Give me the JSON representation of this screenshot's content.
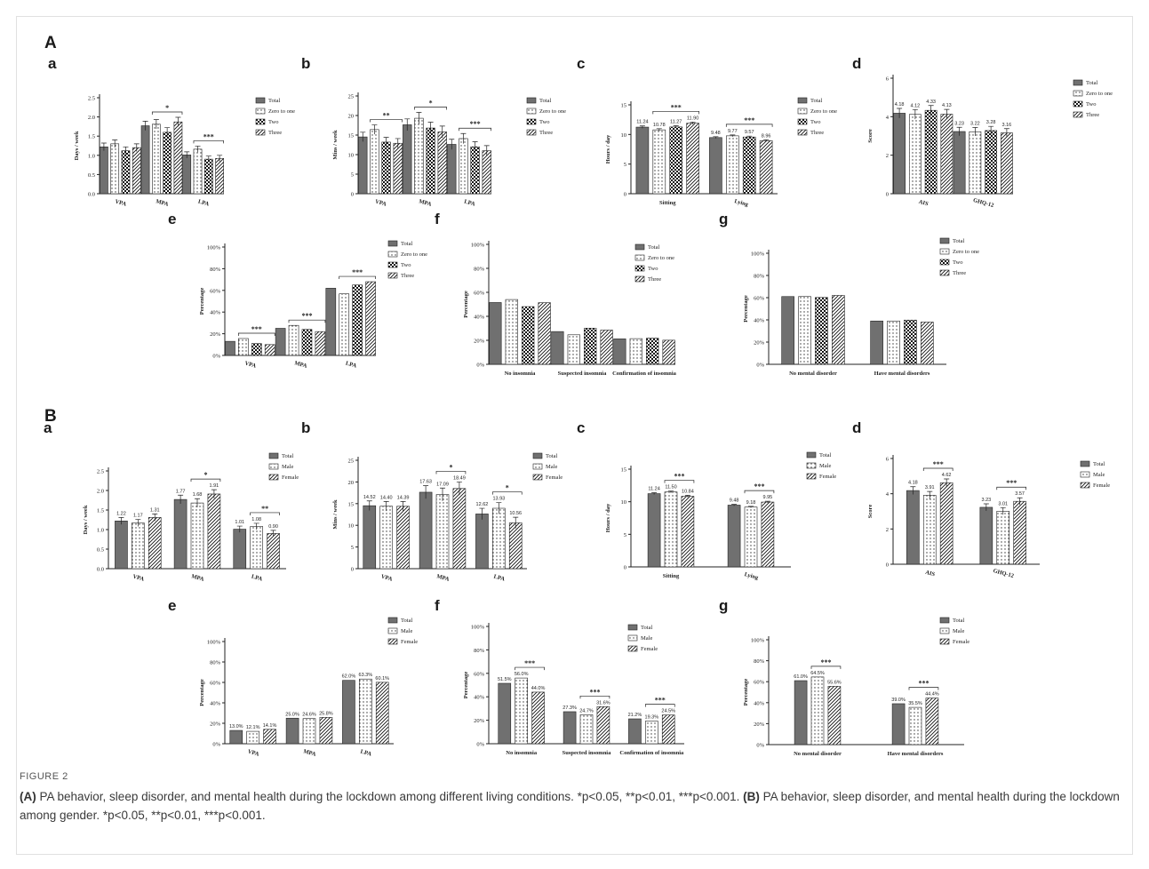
{
  "figure": {
    "label": "FIGURE 2",
    "section_a": "A",
    "section_b": "B",
    "caption_a_head": "(A)",
    "caption_a_text": " PA behavior, sleep disorder, and mental health during the lockdown among different living conditions. *p<0.05, **p<0.01, ***p<0.001. ",
    "caption_b_head": "(B)",
    "caption_b_text": " PA behavior, sleep disorder, and mental health during the lockdown among gender. *p<0.05, **p<0.01, ***p<0.001."
  },
  "colors": {
    "total": "#707070",
    "bar_edge": "#222222"
  },
  "chart_data": [
    {
      "id": "A-a",
      "letter": "a",
      "type": "bar",
      "ylabel": "Days / week",
      "ylim": [
        0,
        2.5
      ],
      "ticks": [
        0.0,
        0.5,
        1.0,
        1.5,
        2.0,
        2.5
      ],
      "tick_decimals": 1,
      "categories": [
        "VPA",
        "MPA",
        "LPA"
      ],
      "series": [
        {
          "name": "Total",
          "pattern": "solid",
          "values": [
            1.22,
            1.77,
            1.01
          ]
        },
        {
          "name": "Zero to one",
          "pattern": "dots",
          "values": [
            1.3,
            1.81,
            1.16
          ]
        },
        {
          "name": "Two",
          "pattern": "checker",
          "values": [
            1.12,
            1.6,
            0.9
          ]
        },
        {
          "name": "Three",
          "pattern": "stripes",
          "values": [
            1.2,
            1.87,
            0.92
          ]
        }
      ],
      "errors": [
        0.1,
        0.12,
        0.08
      ],
      "sig": [
        {
          "cat": 1,
          "text": "*"
        },
        {
          "cat": 2,
          "text": "***"
        }
      ],
      "value_labels": []
    },
    {
      "id": "A-b",
      "letter": "b",
      "type": "bar",
      "ylabel": "Mins / week",
      "ylim": [
        0,
        25
      ],
      "ticks": [
        0,
        5,
        10,
        15,
        20,
        25
      ],
      "tick_decimals": 0,
      "categories": [
        "VPA",
        "MPA",
        "LPA"
      ],
      "series": [
        {
          "name": "Total",
          "pattern": "solid",
          "values": [
            14.52,
            17.63,
            12.62
          ]
        },
        {
          "name": "Zero to one",
          "pattern": "dots",
          "values": [
            16.4,
            19.3,
            14.1
          ]
        },
        {
          "name": "Two",
          "pattern": "checker",
          "values": [
            13.2,
            16.8,
            12.0
          ]
        },
        {
          "name": "Three",
          "pattern": "stripes",
          "values": [
            12.9,
            15.8,
            11.0
          ]
        }
      ],
      "errors": [
        1.2,
        1.5,
        1.3
      ],
      "sig": [
        {
          "cat": 0,
          "text": "**"
        },
        {
          "cat": 1,
          "text": "*"
        },
        {
          "cat": 2,
          "text": "***"
        }
      ],
      "value_labels": []
    },
    {
      "id": "A-c",
      "letter": "c",
      "type": "bar",
      "ylabel": "Hours / day",
      "ylim": [
        0,
        15
      ],
      "ticks": [
        0,
        5,
        10,
        15
      ],
      "tick_decimals": 0,
      "categories": [
        "Sitting",
        "Lying"
      ],
      "series": [
        {
          "name": "Total",
          "pattern": "solid",
          "values": [
            11.24,
            9.48
          ]
        },
        {
          "name": "Zero to one",
          "pattern": "dots",
          "values": [
            10.78,
            9.77
          ]
        },
        {
          "name": "Two",
          "pattern": "checker",
          "values": [
            11.27,
            9.57
          ]
        },
        {
          "name": "Three",
          "pattern": "stripes",
          "values": [
            11.9,
            8.96
          ]
        }
      ],
      "errors": [
        0.2,
        0.15
      ],
      "sig": [
        {
          "cat": 0,
          "text": "***"
        },
        {
          "cat": 1,
          "text": "***"
        }
      ],
      "value_labels": [
        [
          "11.24",
          "10.78",
          "11.27",
          "11.90"
        ],
        [
          "9.48",
          "9.77",
          "9.57",
          "8.96"
        ]
      ]
    },
    {
      "id": "A-d",
      "letter": "d",
      "type": "bar",
      "ylabel": "Score",
      "ylim": [
        0,
        6
      ],
      "ticks": [
        0,
        2,
        4,
        6
      ],
      "tick_decimals": 0,
      "categories": [
        "AIS",
        "GHQ-12"
      ],
      "series": [
        {
          "name": "Total",
          "pattern": "solid",
          "values": [
            4.18,
            3.23
          ]
        },
        {
          "name": "Zero to one",
          "pattern": "dots",
          "values": [
            4.12,
            3.22
          ]
        },
        {
          "name": "Two",
          "pattern": "checker",
          "values": [
            4.33,
            3.28
          ]
        },
        {
          "name": "Three",
          "pattern": "stripes",
          "values": [
            4.13,
            3.16
          ]
        }
      ],
      "errors": [
        0.25,
        0.22
      ],
      "sig": [],
      "value_labels": [
        [
          "4.18",
          "4.12",
          "4.33",
          "4.13"
        ],
        [
          "3.23",
          "3.22",
          "3.28",
          "3.16"
        ]
      ]
    },
    {
      "id": "A-e",
      "letter": "e",
      "type": "bar",
      "ylabel": "Percentage",
      "ylim": [
        0,
        100
      ],
      "ticks": [
        0,
        20,
        40,
        60,
        80,
        100
      ],
      "tick_suffix": "%",
      "tick_decimals": 0,
      "categories": [
        "VPA",
        "MPA",
        "LPA"
      ],
      "series": [
        {
          "name": "Total",
          "pattern": "solid",
          "values": [
            13.0,
            25.0,
            62.0
          ]
        },
        {
          "name": "Zero to one",
          "pattern": "dots",
          "values": [
            15.6,
            27.7,
            56.8
          ]
        },
        {
          "name": "Two",
          "pattern": "checker",
          "values": [
            11.0,
            24.0,
            65.0
          ]
        },
        {
          "name": "Three",
          "pattern": "stripes",
          "values": [
            10.0,
            22.0,
            68.0
          ]
        }
      ],
      "errors": [],
      "sig": [
        {
          "cat": 0,
          "text": "***"
        },
        {
          "cat": 1,
          "text": "***"
        },
        {
          "cat": 2,
          "text": "***"
        }
      ],
      "value_labels": []
    },
    {
      "id": "A-f",
      "letter": "f",
      "type": "bar",
      "ylabel": "Percentage",
      "ylim": [
        0,
        100
      ],
      "ticks": [
        0,
        20,
        40,
        60,
        80,
        100
      ],
      "tick_suffix": "%",
      "tick_decimals": 0,
      "categories": [
        "No insomnia",
        "Suspected insomnia",
        "Confirmation of insomnia"
      ],
      "series": [
        {
          "name": "Total",
          "pattern": "solid",
          "values": [
            51.5,
            27.3,
            21.2
          ]
        },
        {
          "name": "Zero to one",
          "pattern": "dots",
          "values": [
            54.0,
            24.6,
            21.4
          ]
        },
        {
          "name": "Two",
          "pattern": "checker",
          "values": [
            48.1,
            30.1,
            21.8
          ]
        },
        {
          "name": "Three",
          "pattern": "stripes",
          "values": [
            51.4,
            28.5,
            20.1
          ]
        }
      ],
      "errors": [],
      "sig": [],
      "value_labels": []
    },
    {
      "id": "A-g",
      "letter": "g",
      "type": "bar",
      "ylabel": "Percentage",
      "ylim": [
        0,
        100
      ],
      "ticks": [
        0,
        20,
        40,
        60,
        80,
        100
      ],
      "tick_suffix": "%",
      "tick_decimals": 0,
      "categories": [
        "No mental disorder",
        "Have mental disorders"
      ],
      "series": [
        {
          "name": "Total",
          "pattern": "solid",
          "values": [
            61.0,
            39.0
          ]
        },
        {
          "name": "Zero to one",
          "pattern": "dots",
          "values": [
            61.0,
            39.0
          ]
        },
        {
          "name": "Two",
          "pattern": "checker",
          "values": [
            60.2,
            39.8
          ]
        },
        {
          "name": "Three",
          "pattern": "stripes",
          "values": [
            62.0,
            38.0
          ]
        }
      ],
      "errors": [],
      "sig": [],
      "value_labels": []
    },
    {
      "id": "B-a",
      "letter": "a",
      "type": "bar",
      "ylabel": "Days / week",
      "ylim": [
        0,
        2.5
      ],
      "ticks": [
        0.0,
        0.5,
        1.0,
        1.5,
        2.0,
        2.5
      ],
      "tick_decimals": 1,
      "categories": [
        "VPA",
        "MPA",
        "LPA"
      ],
      "series": [
        {
          "name": "Total",
          "pattern": "solid",
          "values": [
            1.22,
            1.77,
            1.01
          ]
        },
        {
          "name": "Male",
          "pattern": "dots",
          "values": [
            1.17,
            1.68,
            1.08
          ]
        },
        {
          "name": "Female",
          "pattern": "stripes",
          "values": [
            1.31,
            1.91,
            0.9
          ]
        }
      ],
      "errors": [
        0.09,
        0.11,
        0.08
      ],
      "sig": [
        {
          "cat": 1,
          "text": "*"
        },
        {
          "cat": 2,
          "text": "**"
        }
      ],
      "value_labels": [
        [
          "1.22",
          "1.17",
          "1.31"
        ],
        [
          "1.77",
          "1.68",
          "1.91"
        ],
        [
          "1.01",
          "1.08",
          "0.90"
        ]
      ]
    },
    {
      "id": "B-b",
      "letter": "b",
      "type": "bar",
      "ylabel": "Mins / week",
      "ylim": [
        0,
        25
      ],
      "ticks": [
        0,
        5,
        10,
        15,
        20,
        25
      ],
      "tick_decimals": 0,
      "categories": [
        "VPA",
        "MPA",
        "LPA"
      ],
      "series": [
        {
          "name": "Total",
          "pattern": "solid",
          "values": [
            14.52,
            17.63,
            12.62
          ]
        },
        {
          "name": "Male",
          "pattern": "dots",
          "values": [
            14.4,
            17.09,
            13.93
          ]
        },
        {
          "name": "Female",
          "pattern": "stripes",
          "values": [
            14.39,
            18.49,
            10.56
          ]
        }
      ],
      "errors": [
        1.1,
        1.5,
        1.3
      ],
      "sig": [
        {
          "cat": 1,
          "text": "*"
        },
        {
          "cat": 2,
          "text": "*"
        }
      ],
      "value_labels": [
        [
          "14.52",
          "14.40",
          "14.39"
        ],
        [
          "17.63",
          "17.09",
          "18.49"
        ],
        [
          "12.62",
          "13.93",
          "10.56"
        ]
      ]
    },
    {
      "id": "B-c",
      "letter": "c",
      "type": "bar",
      "ylabel": "Hours / day",
      "ylim": [
        0,
        15
      ],
      "ticks": [
        0,
        5,
        10,
        15
      ],
      "tick_decimals": 0,
      "categories": [
        "Sitting",
        "Lying"
      ],
      "series": [
        {
          "name": "Total",
          "pattern": "solid",
          "values": [
            11.24,
            9.48
          ]
        },
        {
          "name": "Male",
          "pattern": "dots",
          "values": [
            11.5,
            9.18
          ]
        },
        {
          "name": "Female",
          "pattern": "stripes",
          "values": [
            10.84,
            9.95
          ]
        }
      ],
      "errors": [
        0.15,
        0.12
      ],
      "sig": [
        {
          "cat": 0,
          "text": "***"
        },
        {
          "cat": 1,
          "text": "***"
        }
      ],
      "value_labels": [
        [
          "11.24",
          "11.50",
          "10.84"
        ],
        [
          "9.48",
          "9.18",
          "9.95"
        ]
      ]
    },
    {
      "id": "B-d",
      "letter": "d",
      "type": "bar",
      "ylabel": "Score",
      "ylim": [
        0,
        6
      ],
      "ticks": [
        0,
        2,
        4,
        6
      ],
      "tick_decimals": 0,
      "categories": [
        "AIS",
        "GHQ-12"
      ],
      "series": [
        {
          "name": "Total",
          "pattern": "solid",
          "values": [
            4.18,
            3.23
          ]
        },
        {
          "name": "Male",
          "pattern": "dots",
          "values": [
            3.91,
            3.01
          ]
        },
        {
          "name": "Female",
          "pattern": "stripes",
          "values": [
            4.62,
            3.57
          ]
        }
      ],
      "errors": [
        0.22,
        0.2
      ],
      "sig": [
        {
          "cat": 0,
          "text": "***"
        },
        {
          "cat": 1,
          "text": "***"
        }
      ],
      "value_labels": [
        [
          "4.18",
          "3.91",
          "4.62"
        ],
        [
          "3.23",
          "3.01",
          "3.57"
        ]
      ]
    },
    {
      "id": "B-e",
      "letter": "e",
      "type": "bar",
      "ylabel": "Percentage",
      "ylim": [
        0,
        100
      ],
      "ticks": [
        0,
        20,
        40,
        60,
        80,
        100
      ],
      "tick_suffix": "%",
      "tick_decimals": 0,
      "categories": [
        "VPA",
        "MPA",
        "LPA"
      ],
      "series": [
        {
          "name": "Total",
          "pattern": "solid",
          "values": [
            13.0,
            25.0,
            62.0
          ]
        },
        {
          "name": "Male",
          "pattern": "dots",
          "values": [
            12.1,
            24.6,
            63.3
          ]
        },
        {
          "name": "Female",
          "pattern": "stripes",
          "values": [
            14.1,
            25.8,
            60.1
          ]
        }
      ],
      "errors": [],
      "sig": [],
      "value_labels": [
        [
          "13.0%",
          "12.1%",
          "14.1%"
        ],
        [
          "25.0%",
          "24.6%",
          "25.8%"
        ],
        [
          "62.0%",
          "63.3%",
          "60.1%"
        ]
      ]
    },
    {
      "id": "B-f",
      "letter": "f",
      "type": "bar",
      "ylabel": "Percentage",
      "ylim": [
        0,
        100
      ],
      "ticks": [
        0,
        20,
        40,
        60,
        80,
        100
      ],
      "tick_suffix": "%",
      "tick_decimals": 0,
      "categories": [
        "No insomnia",
        "Suspected insomnia",
        "Confirmation of insomnia"
      ],
      "series": [
        {
          "name": "Total",
          "pattern": "solid",
          "values": [
            51.5,
            27.3,
            21.2
          ]
        },
        {
          "name": "Male",
          "pattern": "dots",
          "values": [
            56.0,
            24.7,
            19.3
          ]
        },
        {
          "name": "Female",
          "pattern": "stripes",
          "values": [
            44.0,
            31.6,
            24.5
          ]
        }
      ],
      "errors": [],
      "sig": [
        {
          "cat": 0,
          "text": "***"
        },
        {
          "cat": 1,
          "text": "***"
        },
        {
          "cat": 2,
          "text": "***"
        }
      ],
      "value_labels": [
        [
          "51.5%",
          "56.0%",
          "44.0%"
        ],
        [
          "27.3%",
          "24.7%",
          "31.6%"
        ],
        [
          "21.2%",
          "19.3%",
          "24.5%"
        ]
      ]
    },
    {
      "id": "B-g",
      "letter": "g",
      "type": "bar",
      "ylabel": "Percentage",
      "ylim": [
        0,
        100
      ],
      "ticks": [
        0,
        20,
        40,
        60,
        80,
        100
      ],
      "tick_suffix": "%",
      "tick_decimals": 0,
      "categories": [
        "No mental disorder",
        "Have mental disorders"
      ],
      "series": [
        {
          "name": "Total",
          "pattern": "solid",
          "values": [
            61.0,
            39.0
          ]
        },
        {
          "name": "Male",
          "pattern": "dots",
          "values": [
            64.5,
            35.5
          ]
        },
        {
          "name": "Female",
          "pattern": "stripes",
          "values": [
            55.6,
            44.4
          ]
        }
      ],
      "errors": [],
      "sig": [
        {
          "cat": 0,
          "text": "***"
        },
        {
          "cat": 1,
          "text": "***"
        }
      ],
      "value_labels": [
        [
          "61.0%",
          "64.5%",
          "55.6%"
        ],
        [
          "39.0%",
          "35.5%",
          "44.4%"
        ]
      ]
    }
  ]
}
